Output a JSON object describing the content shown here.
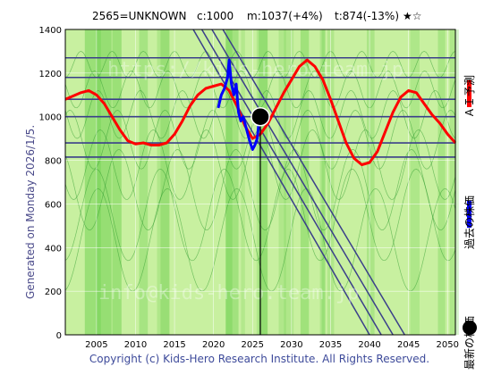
{
  "header": {
    "ticker": "2565=UNKNOWN",
    "current": "c:1000",
    "max": "m:1037(+4%)",
    "target": "t:874(-13%)",
    "rating": "★☆"
  },
  "side_label": "Generated on Monday 2026/1/5.",
  "watermarks": [
    "https://kids-hero.team.jp",
    "info@kids-hero.team.jp"
  ],
  "copyright": "Copyright (c) Kids-Hero Research Institute. All Rights Reserved.",
  "legend": {
    "ai_forecast": "ＡＩ予測",
    "past_price": "過去の株価",
    "latest_price": "最新の株価"
  },
  "colors": {
    "forecast": "#ff0000",
    "past": "#0000ff",
    "latest": "#000000",
    "bands": "#7ad45a",
    "lines": "#3a3f8a",
    "background": "#c8f0a0"
  },
  "chart_data": {
    "type": "line",
    "title": "",
    "xlabel": "",
    "ylabel": "",
    "xlim": [
      2001,
      2051
    ],
    "ylim": [
      0,
      1400
    ],
    "x_ticks": [
      2005,
      2010,
      2015,
      2020,
      2025,
      2030,
      2035,
      2040,
      2045,
      2050
    ],
    "y_ticks": [
      0,
      200,
      400,
      600,
      800,
      1000,
      1200,
      1400
    ],
    "grid": true,
    "horizontal_levels": [
      1270,
      1180,
      1080,
      1000,
      880,
      815
    ],
    "trend_lines": [
      {
        "x": [
          2017.4,
          2040
        ],
        "y": [
          1400,
          0
        ]
      },
      {
        "x": [
          2018.5,
          2041.5
        ],
        "y": [
          1400,
          0
        ]
      },
      {
        "x": [
          2019.8,
          2043
        ],
        "y": [
          1400,
          0
        ]
      },
      {
        "x": [
          2021.2,
          2044.5
        ],
        "y": [
          1400,
          0
        ]
      }
    ],
    "series": [
      {
        "name": "ＡＩ予測",
        "x": [
          2001,
          2002,
          2003,
          2004,
          2005,
          2006,
          2007,
          2008,
          2009,
          2010,
          2011,
          2012,
          2013,
          2014,
          2015,
          2016,
          2017,
          2018,
          2019,
          2020,
          2021,
          2022,
          2023,
          2024,
          2025,
          2026,
          2027,
          2028,
          2029,
          2030,
          2031,
          2032,
          2033,
          2034,
          2035,
          2036,
          2037,
          2038,
          2039,
          2040,
          2041,
          2042,
          2043,
          2044,
          2045,
          2046,
          2047,
          2048,
          2049,
          2050,
          2051
        ],
        "y": [
          1080,
          1095,
          1110,
          1120,
          1100,
          1060,
          1000,
          940,
          890,
          875,
          880,
          870,
          870,
          880,
          920,
          980,
          1050,
          1100,
          1130,
          1140,
          1150,
          1120,
          1050,
          960,
          900,
          920,
          970,
          1040,
          1110,
          1170,
          1230,
          1260,
          1230,
          1170,
          1080,
          980,
          880,
          810,
          780,
          790,
          840,
          930,
          1020,
          1090,
          1120,
          1110,
          1060,
          1010,
          970,
          920,
          880
        ]
      },
      {
        "name": "過去の株価",
        "x": [
          2020.6,
          2021.0,
          2021.4,
          2021.8,
          2022.0,
          2022.3,
          2022.6,
          2022.9,
          2023.2,
          2023.5,
          2023.8,
          2024.1,
          2024.4,
          2024.7,
          2025.0,
          2025.3,
          2025.6,
          2025.9
        ],
        "y": [
          1040,
          1100,
          1130,
          1180,
          1260,
          1150,
          1100,
          1150,
          1020,
          980,
          1000,
          960,
          920,
          880,
          850,
          870,
          900,
          1000
        ]
      }
    ],
    "latest_point": {
      "x": 2026.0,
      "y": 1000
    }
  }
}
